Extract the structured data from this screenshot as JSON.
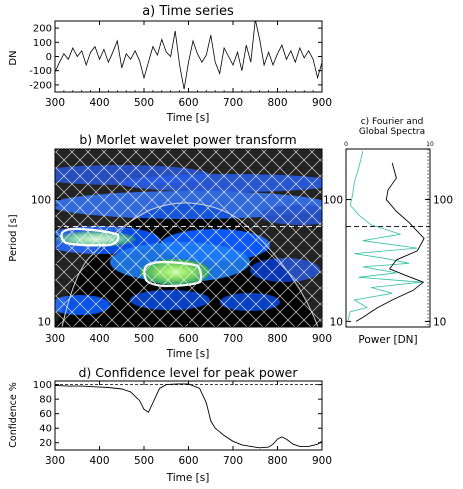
{
  "chart_data": [
    {
      "type": "line",
      "title": "a) Time series",
      "xlabel": "Time [s]",
      "ylabel": "DN",
      "xlim": [
        300,
        900
      ],
      "ylim": [
        -250,
        250
      ],
      "xticks": [
        "300",
        "400",
        "500",
        "600",
        "700",
        "800",
        "900"
      ],
      "yticks": [
        "-200",
        "-100",
        "0",
        "100",
        "200"
      ],
      "x": [
        300,
        310,
        320,
        330,
        340,
        350,
        360,
        370,
        380,
        390,
        400,
        410,
        420,
        430,
        440,
        450,
        460,
        470,
        480,
        490,
        500,
        510,
        520,
        530,
        540,
        550,
        560,
        570,
        580,
        590,
        600,
        610,
        620,
        630,
        640,
        650,
        660,
        670,
        680,
        690,
        700,
        710,
        720,
        730,
        740,
        750,
        760,
        770,
        780,
        790,
        800,
        810,
        820,
        830,
        840,
        850,
        860,
        870,
        880,
        890,
        900
      ],
      "y": [
        -110,
        -40,
        20,
        -20,
        60,
        0,
        40,
        -60,
        30,
        70,
        -20,
        50,
        -40,
        30,
        110,
        -80,
        20,
        -20,
        40,
        -30,
        -150,
        -40,
        70,
        10,
        120,
        30,
        0,
        180,
        -60,
        -230,
        -40,
        110,
        20,
        -40,
        10,
        150,
        -40,
        -120,
        60,
        0,
        -60,
        30,
        -100,
        80,
        -40,
        260,
        120,
        -60,
        30,
        -60,
        20,
        80,
        -20,
        40,
        -40,
        60,
        -10,
        40,
        -20,
        -150,
        -40
      ]
    },
    {
      "type": "heatmap",
      "title": "b) Morlet wavelet power transform",
      "xlabel": "Time [s]",
      "ylabel": "Period [s]",
      "xlim": [
        300,
        900
      ],
      "ylim": [
        9,
        260
      ],
      "yscale": "log",
      "xticks": [
        "300",
        "400",
        "500",
        "600",
        "700",
        "800",
        "900"
      ],
      "yticks": [
        "10",
        "100"
      ],
      "max_period_line": 60,
      "high_power_regions": [
        {
          "time": [
            310,
            460
          ],
          "period": [
            45,
            56
          ]
        },
        {
          "time": [
            535,
            650
          ],
          "period": [
            20,
            30
          ]
        }
      ]
    },
    {
      "type": "line",
      "title": "c) Fourier and Global Spectra",
      "xlabel": "Power [DN]",
      "xlim": [
        0,
        10
      ],
      "xticks": [
        "0",
        "10"
      ],
      "yticks": [
        "10",
        "100"
      ],
      "series": [
        {
          "values": [
            [
              5.5,
              200
            ],
            [
              6.0,
              150
            ],
            [
              5.0,
              120
            ],
            [
              4.8,
              100
            ],
            [
              6.0,
              80
            ],
            [
              7.5,
              65
            ],
            [
              9.3,
              48
            ],
            [
              8.5,
              38
            ],
            [
              6.0,
              32
            ],
            [
              5.2,
              27
            ],
            [
              7.0,
              24
            ],
            [
              9.2,
              21
            ],
            [
              8.0,
              18
            ],
            [
              5.5,
              15
            ],
            [
              3.8,
              13
            ],
            [
              3.0,
              12
            ],
            [
              2.2,
              11
            ],
            [
              1.2,
              10
            ]
          ],
          "color": "#000000"
        },
        {
          "values": [
            [
              2.0,
              250
            ],
            [
              1.5,
              180
            ],
            [
              1.0,
              140
            ],
            [
              0.8,
              110
            ],
            [
              0.5,
              90
            ],
            [
              1.5,
              75
            ],
            [
              3.0,
              62
            ],
            [
              6.5,
              52
            ],
            [
              2.0,
              46
            ],
            [
              8.5,
              40
            ],
            [
              1.0,
              36
            ],
            [
              4.5,
              33
            ],
            [
              7.5,
              30
            ],
            [
              2.0,
              28
            ],
            [
              6.0,
              25
            ],
            [
              1.5,
              23
            ],
            [
              9.0,
              21
            ],
            [
              3.0,
              19
            ],
            [
              5.5,
              17
            ],
            [
              1.0,
              15
            ],
            [
              2.5,
              13
            ],
            [
              0.5,
              12
            ],
            [
              0.2,
              10
            ]
          ],
          "color": "#30c0a0"
        }
      ]
    },
    {
      "type": "line",
      "title": "d) Confidence level for peak power",
      "xlabel": "Time [s]",
      "ylabel": "Confidence %",
      "xlim": [
        300,
        900
      ],
      "ylim": [
        10,
        105
      ],
      "xticks": [
        "300",
        "400",
        "500",
        "600",
        "700",
        "800",
        "900"
      ],
      "yticks": [
        "20",
        "40",
        "60",
        "80",
        "100"
      ],
      "x": [
        300,
        330,
        360,
        390,
        420,
        450,
        470,
        490,
        500,
        510,
        520,
        535,
        550,
        575,
        600,
        625,
        640,
        650,
        660,
        670,
        680,
        700,
        720,
        740,
        760,
        780,
        790,
        800,
        810,
        820,
        835,
        850,
        870,
        890,
        900
      ],
      "y": [
        99,
        98,
        98,
        97,
        96,
        94,
        90,
        78,
        66,
        62,
        75,
        95,
        100,
        101,
        101,
        95,
        75,
        50,
        40,
        35,
        30,
        22,
        17,
        15,
        13,
        14,
        18,
        25,
        28,
        25,
        18,
        15,
        15,
        18,
        22
      ]
    }
  ]
}
